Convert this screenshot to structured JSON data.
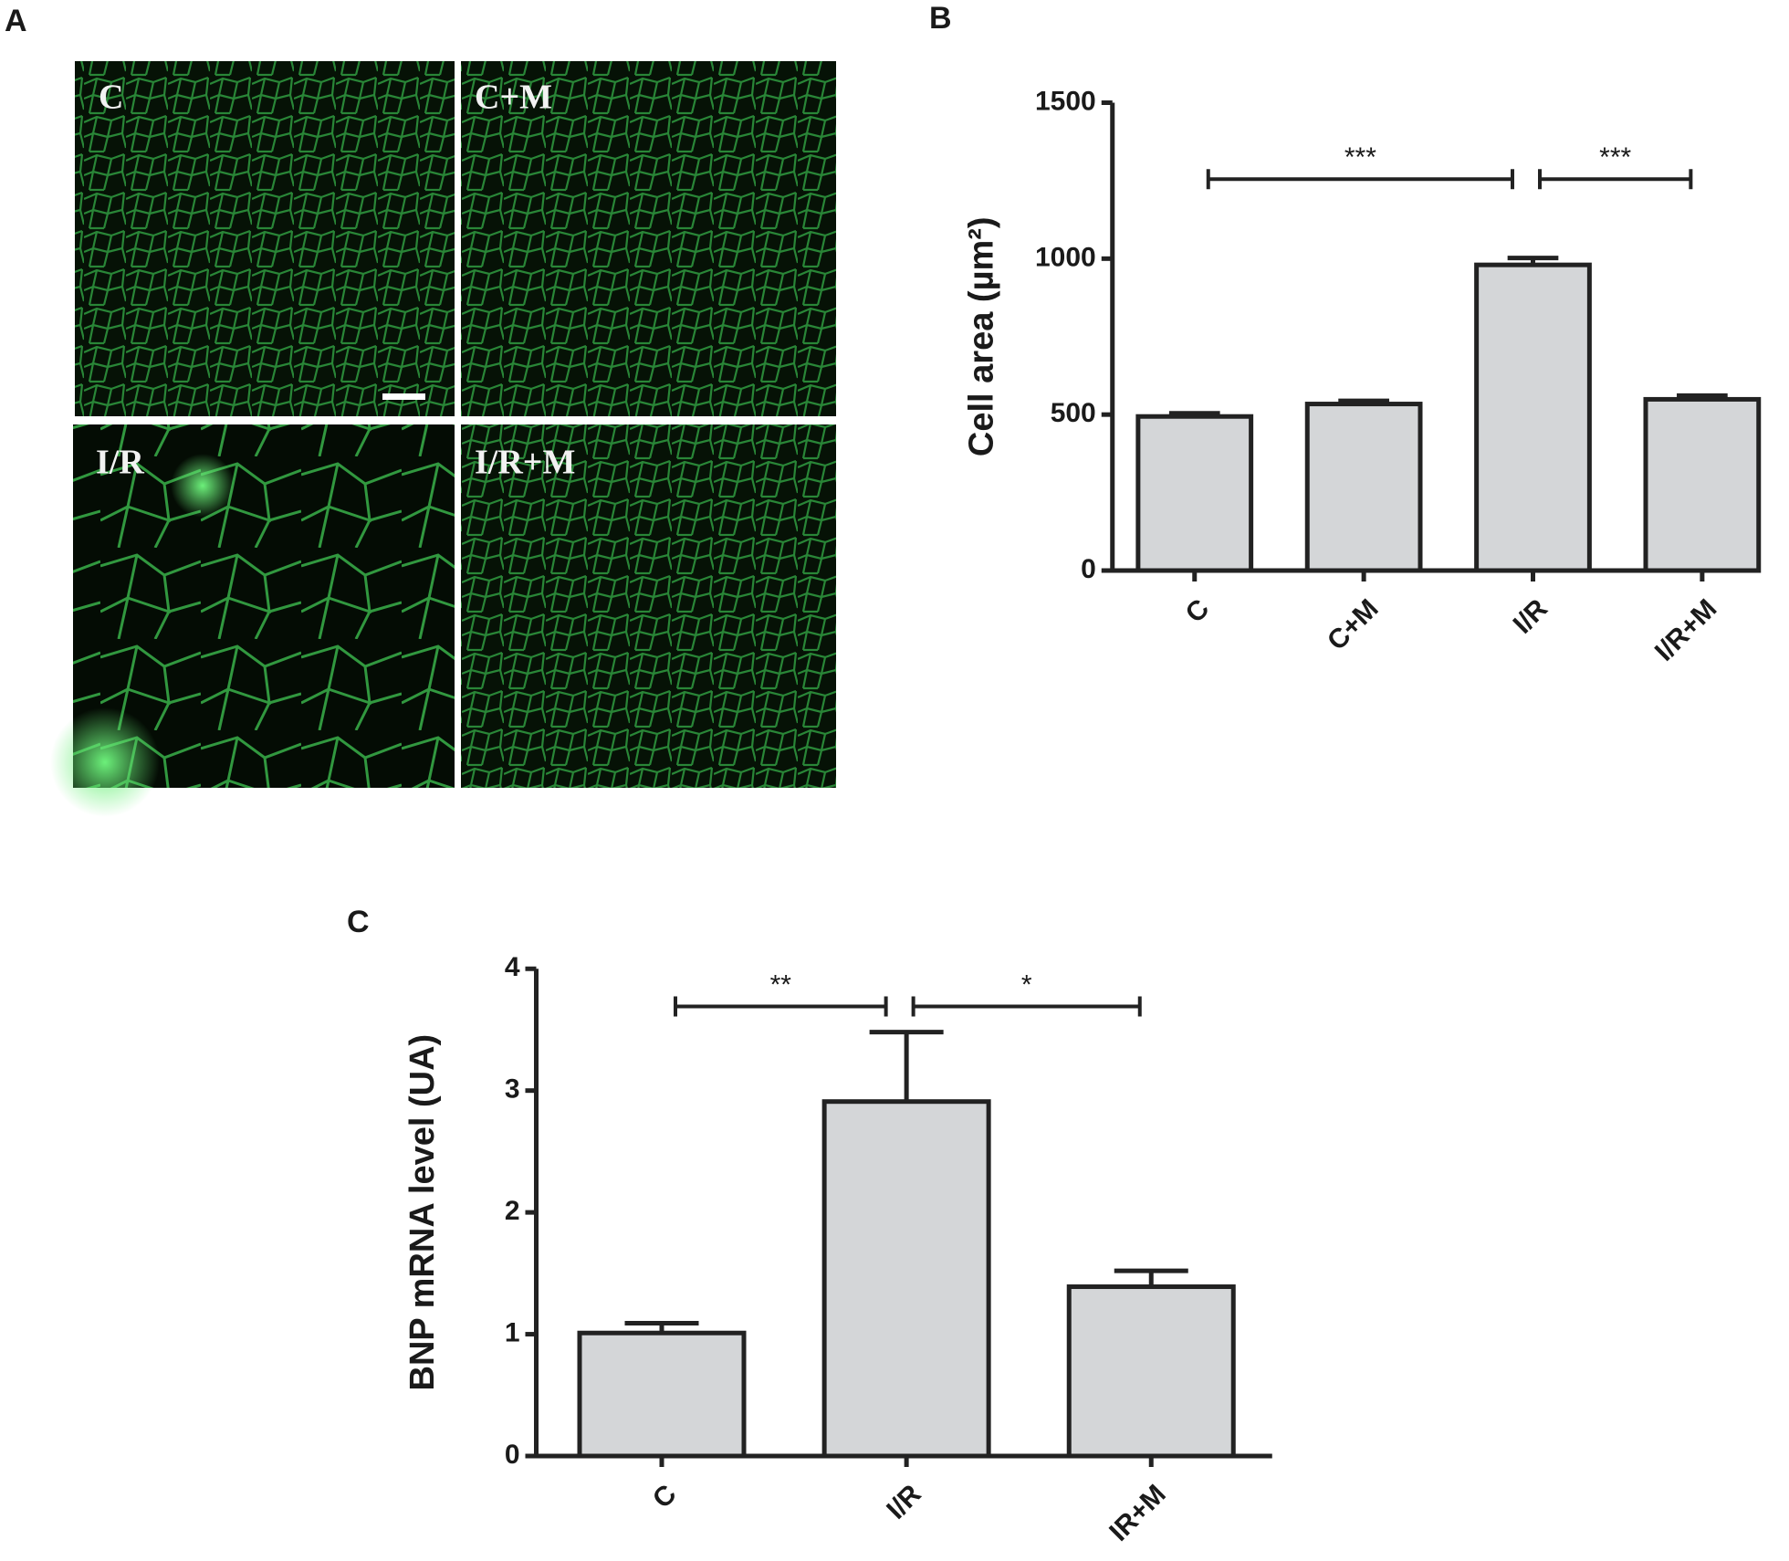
{
  "panel_labels": [
    "A",
    "B",
    "C"
  ],
  "micrographs": [
    "C",
    "C+M",
    "I/R",
    "I/R+M"
  ],
  "chart_data": [
    {
      "type": "bar",
      "y_label": "Cell area (µm²)",
      "categories": [
        "C",
        "C+M",
        "I/R",
        "I/R+M"
      ],
      "values": [
        494,
        534,
        980,
        549
      ],
      "errors": [
        10,
        10,
        22,
        12
      ],
      "color": "#d4d6d8",
      "ylim": [
        0,
        1500
      ],
      "yticks": [
        0,
        500,
        1000,
        1500
      ],
      "annotations": [
        {
          "text": "***",
          "between": [
            "C",
            "I/R"
          ]
        },
        {
          "text": "***",
          "between": [
            "I/R",
            "I/R+M"
          ]
        }
      ]
    },
    {
      "type": "bar",
      "y_label": "BNP mRNA level (UA)",
      "categories": [
        "C",
        "I/R",
        "IR+M"
      ],
      "values": [
        1.01,
        2.91,
        1.39
      ],
      "errors": [
        0.08,
        0.57,
        0.13
      ],
      "color": "#d4d6d8",
      "ylim": [
        0,
        4
      ],
      "yticks": [
        0,
        1,
        2,
        3,
        4
      ],
      "annotations": [
        {
          "text": "**",
          "between": [
            "C",
            "I/R"
          ]
        },
        {
          "text": "*",
          "between": [
            "I/R",
            "IR+M"
          ]
        }
      ]
    }
  ]
}
